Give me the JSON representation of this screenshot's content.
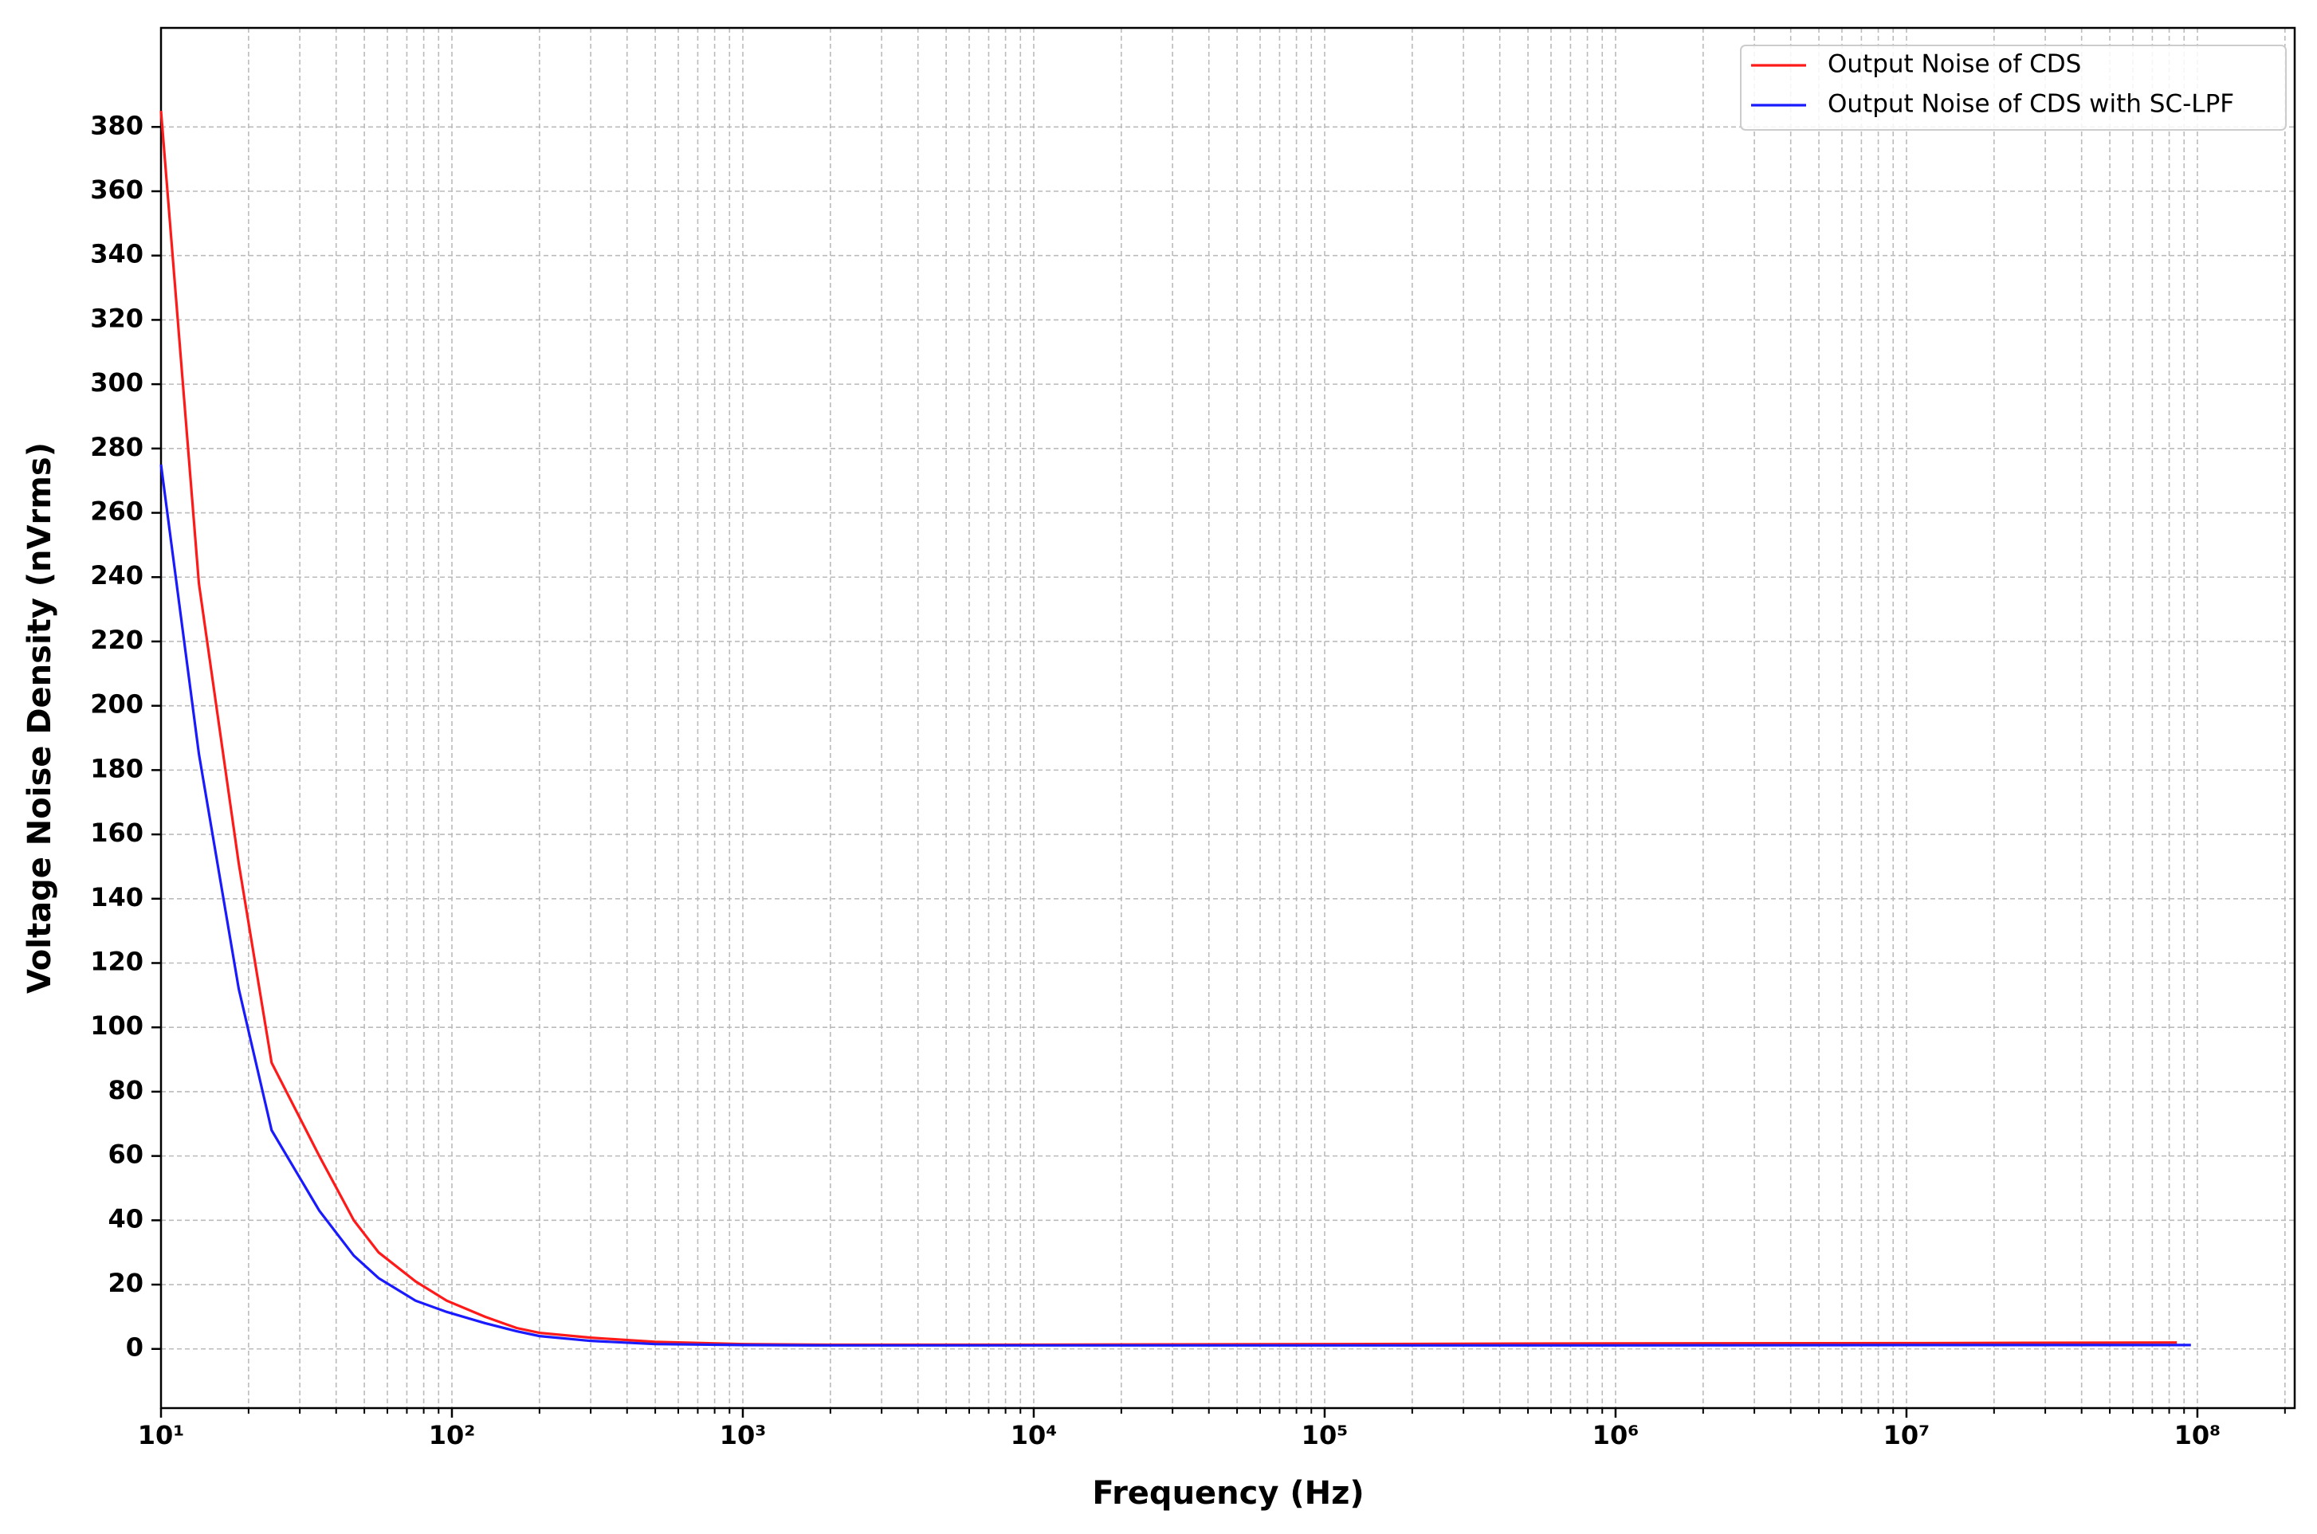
{
  "chart_data": {
    "type": "line",
    "x_label": "Frequency (Hz)",
    "y_label": "Voltage Noise Density (nVrms)",
    "x_log": true,
    "grid": true,
    "minor_grid": true,
    "legend": "upper right",
    "x": [
      10,
      13.5,
      18.5,
      24,
      35,
      46,
      56,
      75,
      96,
      130,
      167,
      200,
      300,
      500,
      1000,
      2000,
      5000,
      10000,
      100000,
      1000000,
      10000000,
      85000000,
      95000000
    ],
    "series": [
      {
        "name": "Output Noise of CDS",
        "color": "#ff1a1a",
        "values": [
          385,
          238,
          151,
          89,
          60,
          40,
          30,
          21,
          15,
          10,
          6.5,
          5,
          3.5,
          2.2,
          1.5,
          1.3,
          1.3,
          1.3,
          1.5,
          1.7,
          1.8,
          2,
          null
        ]
      },
      {
        "name": "Output Noise of CDS with SC-LPF",
        "color": "#1a1aff",
        "values": [
          275,
          185,
          112,
          68,
          43,
          29,
          22,
          15,
          11.5,
          8,
          5.5,
          4,
          2.5,
          1.5,
          1.2,
          1.1,
          1.1,
          1.1,
          1.1,
          1.1,
          1.2,
          1.2,
          1.2
        ]
      }
    ],
    "xlim": [
      10,
      216000000
    ],
    "xticks": [
      {
        "value": 10,
        "label": "10¹"
      },
      {
        "value": 100,
        "label": "10²"
      },
      {
        "value": 1000,
        "label": "10³"
      },
      {
        "value": 10000,
        "label": "10⁴"
      },
      {
        "value": 100000,
        "label": "10⁵"
      },
      {
        "value": 1000000,
        "label": "10⁶"
      },
      {
        "value": 10000000,
        "label": "10⁷"
      },
      {
        "value": 100000000,
        "label": "10⁸"
      }
    ],
    "xminorticks": [
      20,
      30,
      40,
      50,
      60,
      70,
      80,
      90,
      200,
      300,
      400,
      500,
      600,
      700,
      800,
      900,
      2000,
      3000,
      4000,
      5000,
      6000,
      7000,
      8000,
      9000,
      20000,
      30000,
      40000,
      50000,
      60000,
      70000,
      80000,
      90000,
      200000,
      300000,
      400000,
      500000,
      600000,
      700000,
      800000,
      900000,
      2000000,
      3000000,
      4000000,
      5000000,
      6000000,
      7000000,
      8000000,
      9000000,
      20000000,
      30000000,
      40000000,
      50000000,
      60000000,
      70000000,
      80000000,
      90000000,
      200000000
    ],
    "ylim": [
      -18.4,
      410.8
    ],
    "yticks": [
      0,
      20,
      40,
      60,
      80,
      100,
      120,
      140,
      160,
      180,
      200,
      220,
      240,
      260,
      280,
      300,
      320,
      340,
      360,
      380
    ]
  }
}
